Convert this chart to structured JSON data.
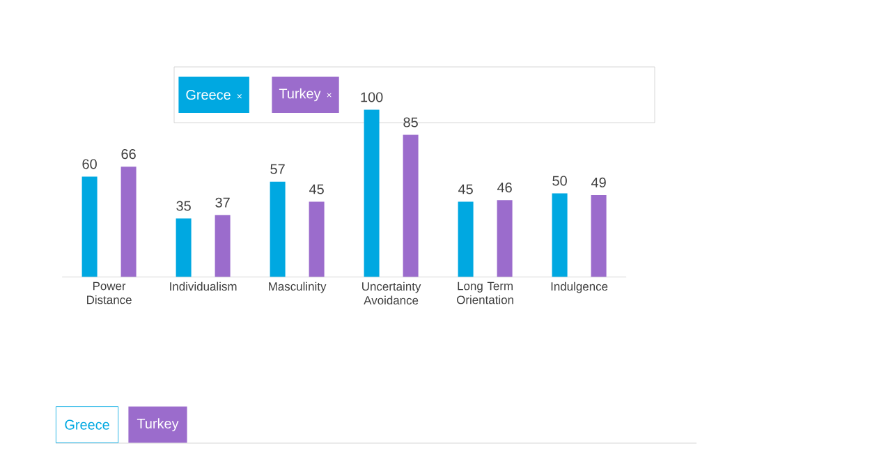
{
  "chart_data": {
    "type": "bar",
    "categories": [
      "Power Distance",
      "Individualism",
      "Masculinity",
      "Uncertainty Avoidance",
      "Long Term Orientation",
      "Indulgence"
    ],
    "series": [
      {
        "name": "Greece",
        "color": "#00a8e1",
        "values": [
          60,
          35,
          57,
          100,
          45,
          50
        ]
      },
      {
        "name": "Turkey",
        "color": "#9b6ccc",
        "values": [
          66,
          37,
          45,
          85,
          46,
          49
        ]
      }
    ],
    "data_labels": true,
    "legend": "top",
    "annotations": [
      "×",
      "×",
      "Greece",
      "Turkey"
    ]
  }
}
